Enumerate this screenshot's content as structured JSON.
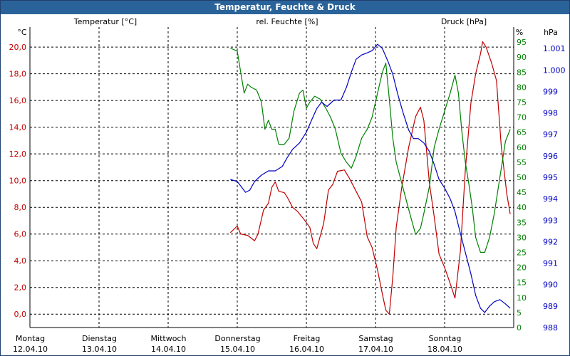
{
  "window": {
    "title": "Temperatur, Feuchte & Druck"
  },
  "chart_data": {
    "type": "line",
    "title": "Temperatur, Feuchte & Druck",
    "colors": {
      "temperature": "#c00000",
      "humidity": "#008000",
      "pressure": "#0000c0",
      "axis_text": "#000080"
    },
    "x_axis": {
      "range": [
        0,
        7
      ],
      "unit": "days since Montag 12.04.10 00:00",
      "ticks": [
        {
          "day": "Montag",
          "date": "12.04.10"
        },
        {
          "day": "Dienstag",
          "date": "13.04.10"
        },
        {
          "day": "Mittwoch",
          "date": "14.04.10"
        },
        {
          "day": "Donnerstag",
          "date": "15.04.10"
        },
        {
          "day": "Freitag",
          "date": "16.04.10"
        },
        {
          "day": "Samstag",
          "date": "17.04.10"
        },
        {
          "day": "Sonntag",
          "date": "18.04.10"
        }
      ]
    },
    "axes": {
      "temperature": {
        "label": "Temperatur [°C]",
        "unit": "°C",
        "ylim": [
          -1,
          21.5
        ],
        "ticks": [
          "0,0",
          "2,0",
          "4,0",
          "6,0",
          "8,0",
          "10,0",
          "12,0",
          "14,0",
          "16,0",
          "18,0",
          "20,0"
        ]
      },
      "humidity": {
        "label": "rel. Feuchte [%]",
        "unit": "%",
        "ylim": [
          0,
          100
        ],
        "ticks": [
          "0",
          "5",
          "10",
          "15",
          "20",
          "25",
          "30",
          "35",
          "40",
          "45",
          "50",
          "55",
          "60",
          "65",
          "70",
          "75",
          "80",
          "85",
          "90",
          "95"
        ]
      },
      "pressure": {
        "label": "Druck [hPa]",
        "unit": "hPa",
        "ylim": [
          988,
          1002
        ],
        "ticks": [
          "988",
          "989",
          "990",
          "991",
          "992",
          "993",
          "994",
          "995",
          "996",
          "997",
          "998",
          "999",
          "1.000",
          "1.001"
        ]
      }
    },
    "series": [
      {
        "name": "Temperatur",
        "axis": "temperature",
        "points": [
          [
            2.9,
            6.1
          ],
          [
            3.0,
            6.6
          ],
          [
            3.05,
            6.0
          ],
          [
            3.15,
            5.9
          ],
          [
            3.25,
            5.5
          ],
          [
            3.3,
            6.0
          ],
          [
            3.38,
            7.8
          ],
          [
            3.45,
            8.3
          ],
          [
            3.5,
            9.5
          ],
          [
            3.55,
            9.9
          ],
          [
            3.6,
            9.2
          ],
          [
            3.68,
            9.1
          ],
          [
            3.73,
            8.7
          ],
          [
            3.8,
            8.0
          ],
          [
            3.87,
            7.7
          ],
          [
            3.95,
            7.2
          ],
          [
            4.05,
            6.5
          ],
          [
            4.1,
            5.3
          ],
          [
            4.15,
            4.9
          ],
          [
            4.25,
            6.8
          ],
          [
            4.32,
            9.3
          ],
          [
            4.38,
            9.7
          ],
          [
            4.45,
            10.7
          ],
          [
            4.55,
            10.8
          ],
          [
            4.62,
            10.2
          ],
          [
            4.72,
            9.2
          ],
          [
            4.8,
            8.4
          ],
          [
            4.88,
            5.8
          ],
          [
            4.95,
            5.0
          ],
          [
            5.03,
            3.3
          ],
          [
            5.1,
            1.5
          ],
          [
            5.15,
            0.3
          ],
          [
            5.2,
            0.0
          ],
          [
            5.25,
            2.8
          ],
          [
            5.3,
            6.5
          ],
          [
            5.38,
            9.5
          ],
          [
            5.48,
            12.5
          ],
          [
            5.58,
            14.8
          ],
          [
            5.65,
            15.5
          ],
          [
            5.7,
            14.5
          ],
          [
            5.78,
            9.8
          ],
          [
            5.85,
            7.3
          ],
          [
            5.92,
            4.5
          ],
          [
            6.0,
            3.5
          ],
          [
            6.08,
            2.3
          ],
          [
            6.15,
            1.2
          ],
          [
            6.23,
            4.8
          ],
          [
            6.3,
            10.8
          ],
          [
            6.38,
            15.8
          ],
          [
            6.45,
            18.0
          ],
          [
            6.52,
            19.5
          ],
          [
            6.55,
            20.4
          ],
          [
            6.6,
            20.0
          ],
          [
            6.68,
            18.8
          ],
          [
            6.75,
            17.5
          ],
          [
            6.82,
            12.6
          ],
          [
            6.9,
            9.0
          ],
          [
            6.95,
            7.5
          ]
        ]
      },
      {
        "name": "rel. Feuchte",
        "axis": "humidity",
        "points": [
          [
            2.9,
            93
          ],
          [
            3.0,
            92
          ],
          [
            3.05,
            85
          ],
          [
            3.1,
            78
          ],
          [
            3.15,
            81
          ],
          [
            3.2,
            80
          ],
          [
            3.28,
            79
          ],
          [
            3.35,
            75
          ],
          [
            3.4,
            66
          ],
          [
            3.45,
            69
          ],
          [
            3.5,
            66
          ],
          [
            3.55,
            66
          ],
          [
            3.6,
            61
          ],
          [
            3.68,
            61
          ],
          [
            3.75,
            63
          ],
          [
            3.82,
            72
          ],
          [
            3.9,
            78
          ],
          [
            3.95,
            79
          ],
          [
            4.0,
            73
          ],
          [
            4.05,
            75
          ],
          [
            4.12,
            77
          ],
          [
            4.2,
            76
          ],
          [
            4.28,
            73
          ],
          [
            4.35,
            70
          ],
          [
            4.42,
            66
          ],
          [
            4.5,
            58
          ],
          [
            4.58,
            55
          ],
          [
            4.65,
            53
          ],
          [
            4.72,
            57
          ],
          [
            4.8,
            63
          ],
          [
            4.88,
            66
          ],
          [
            4.95,
            70
          ],
          [
            5.02,
            77
          ],
          [
            5.1,
            85
          ],
          [
            5.15,
            88
          ],
          [
            5.2,
            76
          ],
          [
            5.25,
            63
          ],
          [
            5.3,
            55
          ],
          [
            5.38,
            48
          ],
          [
            5.45,
            42
          ],
          [
            5.52,
            36
          ],
          [
            5.58,
            31
          ],
          [
            5.65,
            33
          ],
          [
            5.7,
            38
          ],
          [
            5.78,
            47
          ],
          [
            5.85,
            60
          ],
          [
            5.92,
            66
          ],
          [
            6.0,
            72
          ],
          [
            6.08,
            78
          ],
          [
            6.15,
            84
          ],
          [
            6.2,
            78
          ],
          [
            6.25,
            65
          ],
          [
            6.3,
            55
          ],
          [
            6.35,
            48
          ],
          [
            6.4,
            40
          ],
          [
            6.45,
            30
          ],
          [
            6.52,
            25
          ],
          [
            6.58,
            25
          ],
          [
            6.65,
            30
          ],
          [
            6.72,
            38
          ],
          [
            6.8,
            50
          ],
          [
            6.88,
            62
          ],
          [
            6.95,
            66
          ]
        ]
      },
      {
        "name": "Druck",
        "axis": "pressure",
        "points": [
          [
            2.9,
            994.9
          ],
          [
            3.0,
            994.8
          ],
          [
            3.05,
            994.6
          ],
          [
            3.12,
            994.3
          ],
          [
            3.18,
            994.4
          ],
          [
            3.25,
            994.8
          ],
          [
            3.35,
            995.1
          ],
          [
            3.45,
            995.3
          ],
          [
            3.55,
            995.3
          ],
          [
            3.65,
            995.5
          ],
          [
            3.72,
            995.9
          ],
          [
            3.8,
            996.3
          ],
          [
            3.9,
            996.6
          ],
          [
            4.0,
            997.1
          ],
          [
            4.08,
            997.7
          ],
          [
            4.15,
            998.2
          ],
          [
            4.22,
            998.5
          ],
          [
            4.3,
            998.3
          ],
          [
            4.4,
            998.6
          ],
          [
            4.5,
            998.6
          ],
          [
            4.58,
            999.2
          ],
          [
            4.65,
            999.9
          ],
          [
            4.72,
            1000.5
          ],
          [
            4.8,
            1000.7
          ],
          [
            4.88,
            1000.8
          ],
          [
            4.95,
            1000.9
          ],
          [
            5.03,
            1001.2
          ],
          [
            5.1,
            1001.0
          ],
          [
            5.18,
            1000.4
          ],
          [
            5.25,
            999.8
          ],
          [
            5.32,
            998.9
          ],
          [
            5.4,
            998.0
          ],
          [
            5.48,
            997.2
          ],
          [
            5.55,
            996.8
          ],
          [
            5.62,
            996.8
          ],
          [
            5.7,
            996.6
          ],
          [
            5.78,
            996.2
          ],
          [
            5.85,
            995.6
          ],
          [
            5.92,
            994.9
          ],
          [
            6.0,
            994.5
          ],
          [
            6.08,
            994.0
          ],
          [
            6.15,
            993.4
          ],
          [
            6.22,
            992.5
          ],
          [
            6.3,
            991.5
          ],
          [
            6.38,
            990.5
          ],
          [
            6.45,
            989.5
          ],
          [
            6.52,
            988.9
          ],
          [
            6.58,
            988.7
          ],
          [
            6.65,
            989.0
          ],
          [
            6.72,
            989.2
          ],
          [
            6.8,
            989.3
          ],
          [
            6.88,
            989.1
          ],
          [
            6.95,
            988.9
          ]
        ]
      }
    ]
  }
}
